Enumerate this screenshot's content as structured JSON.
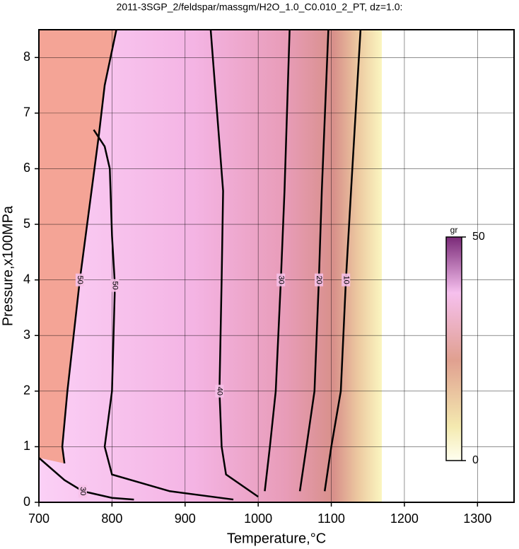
{
  "chart_data": {
    "type": "contour",
    "title": "2011-3SGP_2/feldspar/massgm/H2O_1.0_C0.010_2_PT, dz=1.0:",
    "x_label": "Temperature,°C",
    "y_label": "Pressure,x100MPa",
    "xlim": [
      700,
      1350
    ],
    "ylim": [
      0,
      8.5
    ],
    "xticks": [
      700,
      800,
      900,
      1000,
      1100,
      1200,
      1300
    ],
    "yticks": [
      0,
      1,
      2,
      3,
      4,
      5,
      6,
      7,
      8
    ],
    "grid": true,
    "contours": [
      {
        "level": 10,
        "x": [
          1091,
          1100,
          1113,
          1120,
          1127,
          1140
        ],
        "y": [
          0.2,
          1,
          2,
          4,
          5.6,
          8.5
        ]
      },
      {
        "level": 20,
        "x": [
          1057,
          1066,
          1077,
          1083,
          1087,
          1096
        ],
        "y": [
          0.2,
          1,
          2,
          4,
          5.6,
          8.5
        ]
      },
      {
        "level": 30,
        "x": [
          1009,
          1016,
          1024,
          1031,
          1036,
          1043
        ],
        "y": [
          0.2,
          1,
          2,
          4,
          5.6,
          8.5
        ]
      },
      {
        "level": 40,
        "x": [
          1000,
          956,
          950,
          947,
          950,
          952,
          935
        ],
        "y": [
          0.1,
          0.5,
          1,
          2,
          4,
          5.6,
          8.5
        ]
      },
      {
        "level": 50,
        "x": [
          966,
          879,
          800,
          790,
          800,
          804,
          800,
          797,
          790,
          775
        ],
        "y": [
          0.05,
          0.2,
          0.5,
          1,
          2,
          3.9,
          4.8,
          6,
          6.4,
          6.7
        ]
      },
      {
        "level": 50,
        "x": [
          735,
          732,
          739,
          756,
          782,
          790,
          806
        ],
        "y": [
          0.7,
          1,
          2,
          4,
          6.6,
          7.5,
          8.5
        ]
      },
      {
        "level": 30,
        "x": [
          700,
          735,
          760,
          800,
          830
        ],
        "y": [
          0.8,
          0.4,
          0.2,
          0.08,
          0.05
        ]
      }
    ],
    "colorbar": {
      "label": "gr",
      "lim": [
        0,
        50
      ],
      "ticks": [
        0,
        50
      ]
    }
  }
}
